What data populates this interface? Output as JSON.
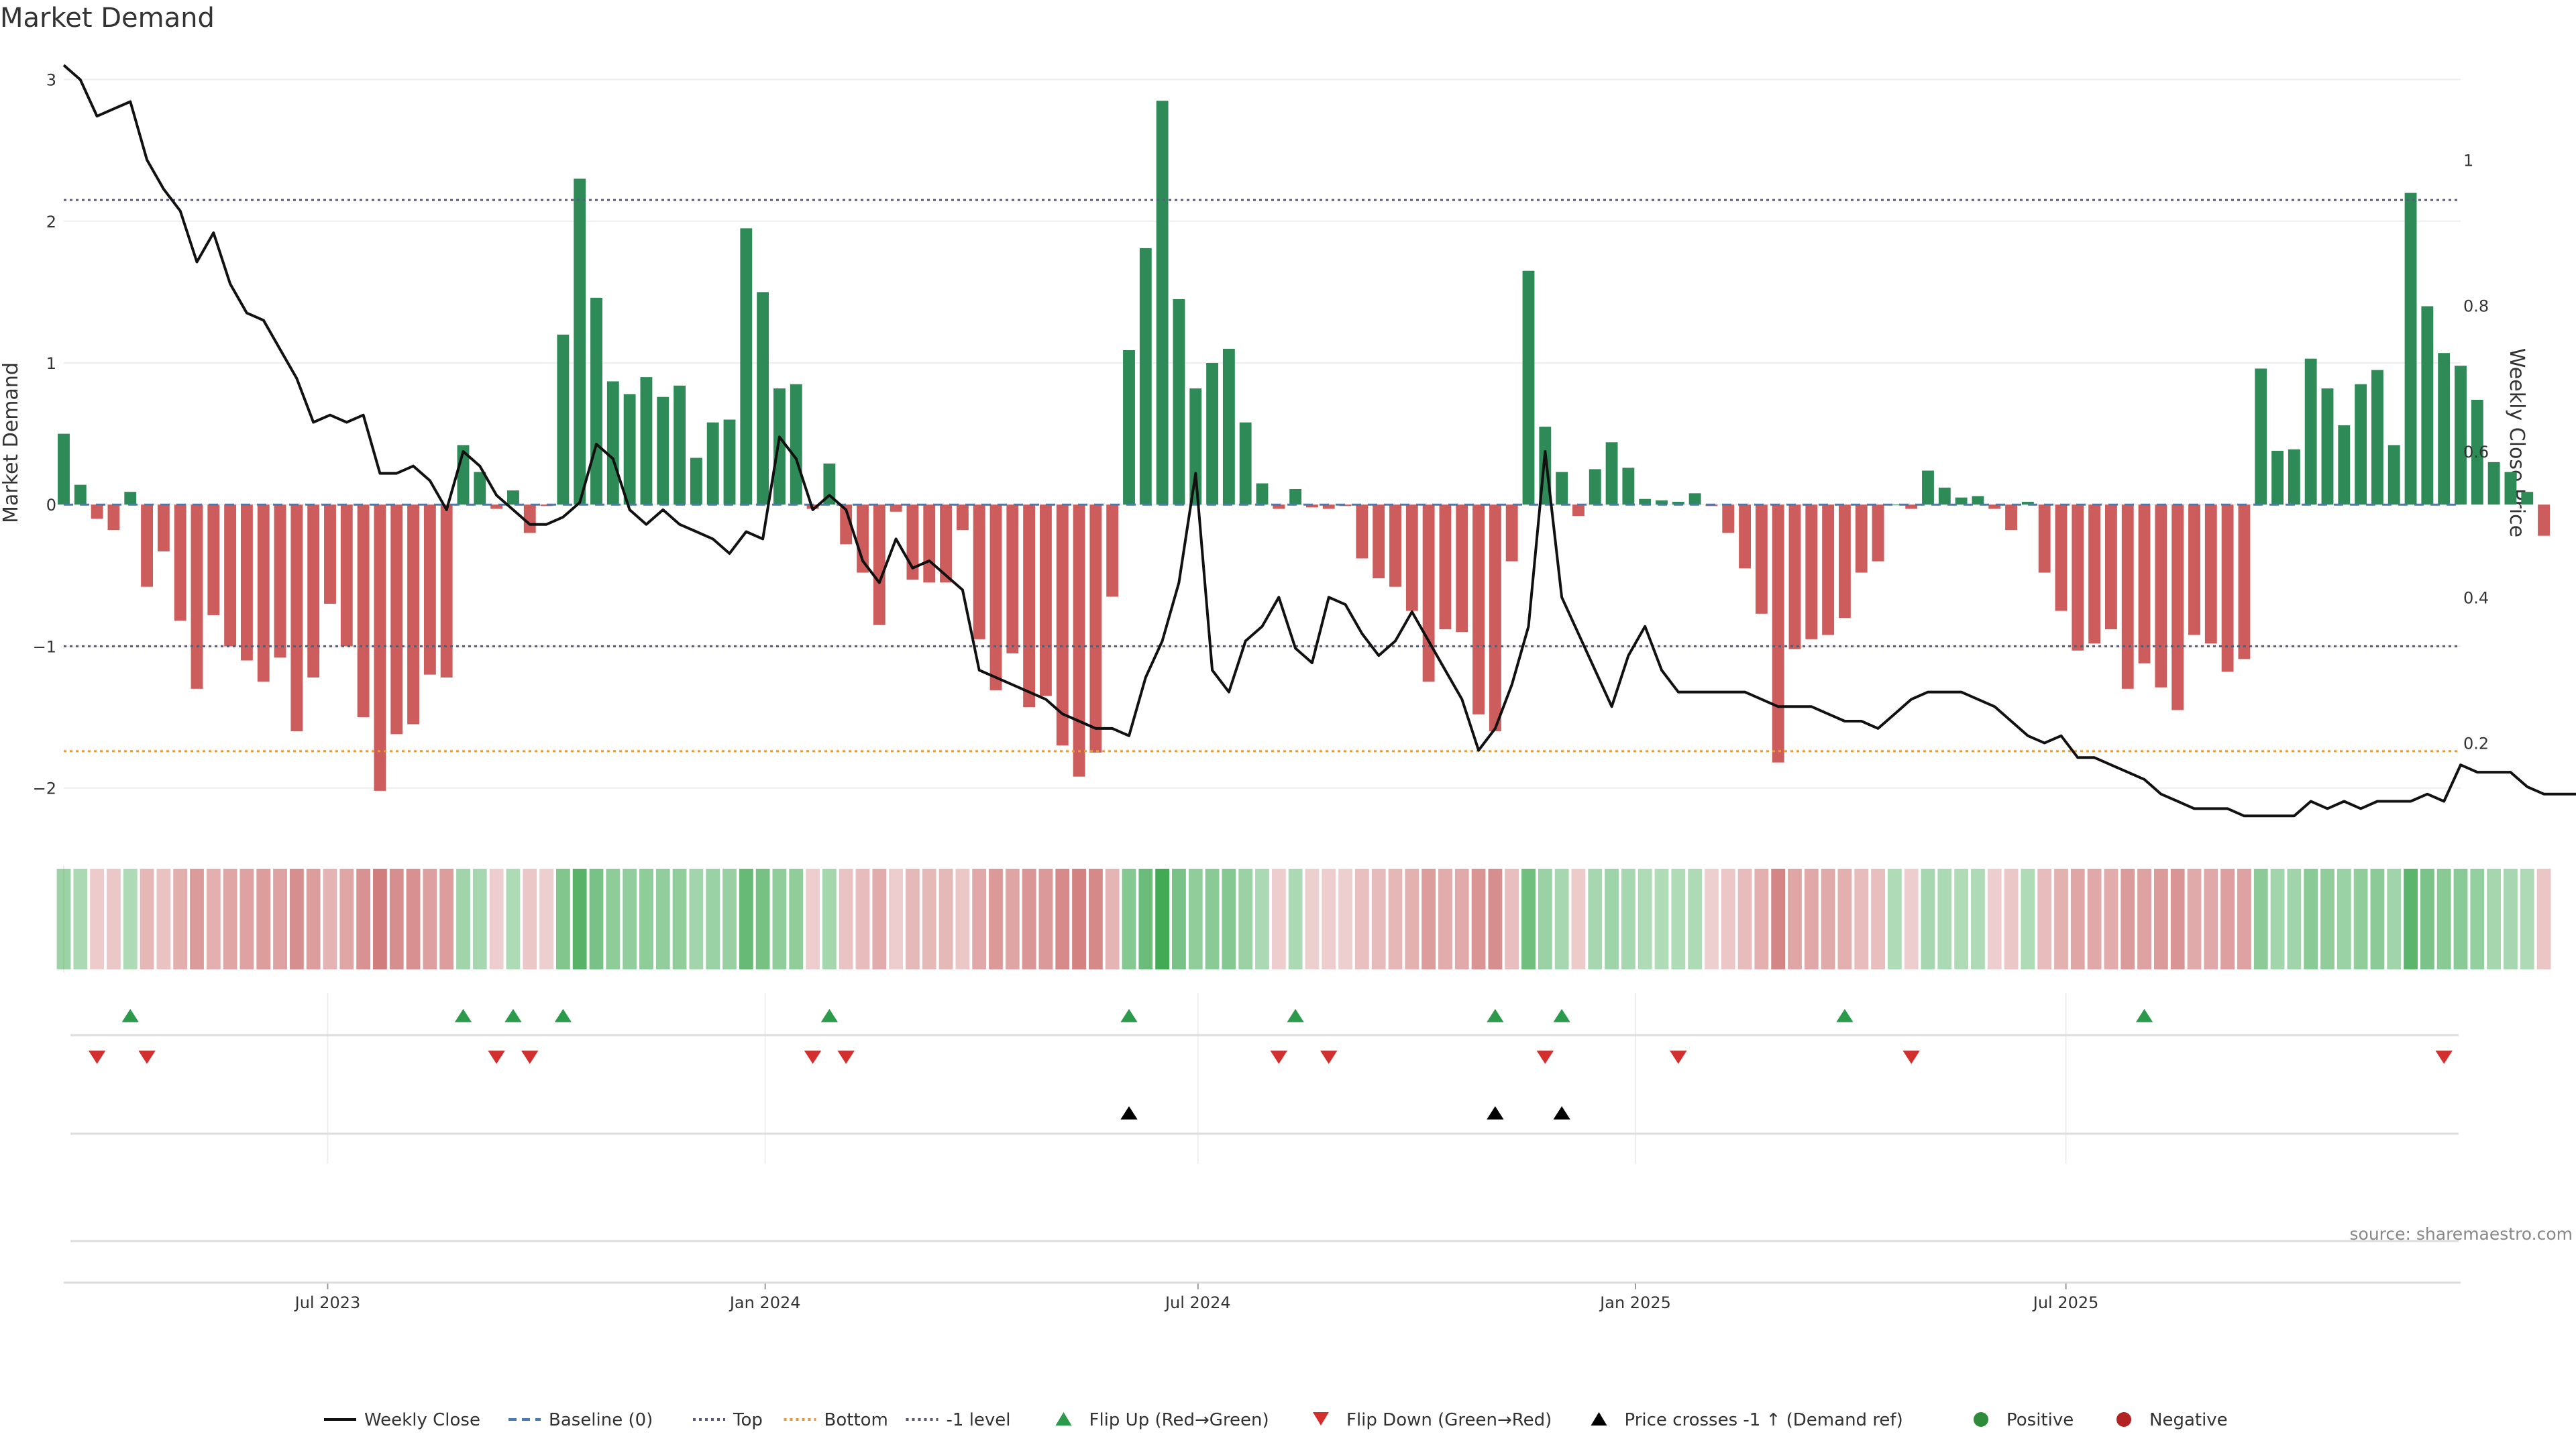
{
  "chart_data": {
    "type": "bar",
    "title": "Market Demand",
    "ylabel": "Market Demand",
    "y2label": "Weekly Close Price",
    "ylim": [
      -2.3,
      3.05
    ],
    "y2lim": [
      0.08,
      1.12
    ],
    "yticks": [
      -2,
      -1,
      0,
      1,
      2,
      3
    ],
    "y2ticks": [
      0.2,
      0.4,
      0.6,
      0.8,
      1
    ],
    "x_start": "2023-03-12",
    "x_end": "2025-12-14",
    "x_ticks": [
      {
        "date": "2023-07-01",
        "label": "Jul 2023"
      },
      {
        "date": "2024-01-01",
        "label": "Jan 2024"
      },
      {
        "date": "2024-07-01",
        "label": "Jul 2024"
      },
      {
        "date": "2025-01-01",
        "label": "Jan 2025"
      },
      {
        "date": "2025-07-01",
        "label": "Jul 2025"
      }
    ],
    "week_start": "2023-03-12",
    "demand": [
      0.5,
      0.14,
      -0.1,
      -0.18,
      0.09,
      -0.58,
      -0.33,
      -0.82,
      -1.3,
      -0.78,
      -1.0,
      -1.1,
      -1.25,
      -1.08,
      -1.6,
      -1.22,
      -0.7,
      -1.0,
      -1.5,
      -2.02,
      -1.62,
      -1.55,
      -1.2,
      -1.22,
      0.42,
      0.23,
      -0.03,
      0.1,
      -0.2,
      -0.01,
      1.2,
      2.3,
      1.46,
      0.87,
      0.78,
      0.9,
      0.76,
      0.84,
      0.33,
      0.58,
      0.6,
      1.95,
      1.5,
      0.82,
      0.85,
      -0.03,
      0.29,
      -0.28,
      -0.48,
      -0.85,
      -0.05,
      -0.53,
      -0.55,
      -0.55,
      -0.18,
      -0.95,
      -1.31,
      -1.05,
      -1.43,
      -1.35,
      -1.7,
      -1.92,
      -1.75,
      -0.65,
      1.09,
      1.81,
      2.85,
      1.45,
      0.82,
      1.0,
      1.1,
      0.58,
      0.15,
      -0.03,
      0.11,
      -0.02,
      -0.03,
      -0.01,
      -0.38,
      -0.52,
      -0.58,
      -0.75,
      -1.25,
      -0.88,
      -0.9,
      -1.48,
      -1.6,
      -0.4,
      1.65,
      0.55,
      0.23,
      -0.08,
      0.25,
      0.44,
      0.26,
      0.04,
      0.03,
      0.02,
      0.08,
      -0.01,
      -0.2,
      -0.45,
      -0.77,
      -1.82,
      -1.02,
      -0.95,
      -0.92,
      -0.8,
      -0.48,
      -0.4,
      0.0,
      -0.03,
      0.24,
      0.12,
      0.05,
      0.06,
      -0.03,
      -0.18,
      0.02,
      -0.48,
      -0.75,
      -1.03,
      -0.98,
      -0.88,
      -1.3,
      -1.12,
      -1.29,
      -1.45,
      -0.92,
      -0.98,
      -1.18,
      -1.09,
      0.96,
      0.38,
      0.39,
      1.03,
      0.82,
      0.56,
      0.85,
      0.95,
      0.42,
      2.2,
      1.4,
      1.07,
      0.98,
      0.74,
      0.3,
      0.23,
      0.09,
      -0.22
    ],
    "weekly_close": [
      1.13,
      1.11,
      1.06,
      1.07,
      1.08,
      1.0,
      0.96,
      0.93,
      0.86,
      0.9,
      0.83,
      0.79,
      0.78,
      0.74,
      0.7,
      0.64,
      0.65,
      0.64,
      0.65,
      0.57,
      0.57,
      0.58,
      0.56,
      0.52,
      0.6,
      0.58,
      0.54,
      0.52,
      0.5,
      0.5,
      0.51,
      0.53,
      0.61,
      0.59,
      0.52,
      0.5,
      0.52,
      0.5,
      0.49,
      0.48,
      0.46,
      0.49,
      0.48,
      0.62,
      0.59,
      0.52,
      0.54,
      0.52,
      0.45,
      0.42,
      0.48,
      0.44,
      0.45,
      0.43,
      0.41,
      0.3,
      0.29,
      0.28,
      0.27,
      0.26,
      0.24,
      0.23,
      0.22,
      0.22,
      0.21,
      0.29,
      0.34,
      0.42,
      0.57,
      0.3,
      0.27,
      0.34,
      0.36,
      0.4,
      0.33,
      0.31,
      0.4,
      0.39,
      0.35,
      0.32,
      0.34,
      0.38,
      0.34,
      0.3,
      0.26,
      0.19,
      0.22,
      0.28,
      0.36,
      0.6,
      0.4,
      0.35,
      0.3,
      0.25,
      0.32,
      0.36,
      0.3,
      0.27,
      0.27,
      0.27,
      0.27,
      0.27,
      0.26,
      0.25,
      0.25,
      0.25,
      0.24,
      0.23,
      0.23,
      0.22,
      0.24,
      0.26,
      0.27,
      0.27,
      0.27,
      0.26,
      0.25,
      0.23,
      0.21,
      0.2,
      0.21,
      0.18,
      0.18,
      0.17,
      0.16,
      0.15,
      0.13,
      0.12,
      0.11,
      0.11,
      0.11,
      0.1,
      0.1,
      0.1,
      0.1,
      0.12,
      0.11,
      0.12,
      0.11,
      0.12,
      0.12,
      0.12,
      0.13,
      0.12,
      0.17,
      0.16,
      0.16,
      0.16,
      0.14,
      0.13,
      0.13,
      0.13,
      0.12
    ],
    "levels": {
      "top": 2.15,
      "bottom": -1.74,
      "minus_one": -1.0,
      "baseline": 0
    },
    "flip_up_weeks": [
      4,
      24,
      27,
      30,
      46,
      64,
      74,
      86,
      90,
      107,
      125
    ],
    "flip_down_weeks": [
      2,
      5,
      26,
      28,
      45,
      47,
      73,
      76,
      89,
      97,
      111,
      143
    ],
    "price_cross_weeks": [
      64,
      86,
      90
    ],
    "legend": [
      {
        "label": "Weekly Close",
        "kind": "line-solid",
        "color": "#111111"
      },
      {
        "label": "Baseline (0)",
        "kind": "line-dash",
        "color": "#4a7ab5"
      },
      {
        "label": "Top",
        "kind": "line-dot",
        "color": "#5a5a82"
      },
      {
        "label": "Bottom",
        "kind": "line-dot",
        "color": "#e69a3c"
      },
      {
        "label": "-1 level",
        "kind": "line-dot",
        "color": "#5a5a6e"
      },
      {
        "label": "Flip Up (Red→Green)",
        "kind": "tri-up",
        "color": "#2b9a4a"
      },
      {
        "label": "Flip Down (Green→Red)",
        "kind": "tri-down",
        "color": "#d32f2f"
      },
      {
        "label": "Price crosses -1 ↑ (Demand ref)",
        "kind": "tri-up",
        "color": "#000000"
      },
      {
        "label": "Positive",
        "kind": "dot",
        "color": "#2e8b3a"
      },
      {
        "label": "Negative",
        "kind": "dot",
        "color": "#b22222"
      }
    ],
    "source": "source: sharemaestro.com",
    "colors": {
      "positive": "#2e8b57",
      "negative": "#cd5c5c",
      "close": "#111111"
    }
  }
}
